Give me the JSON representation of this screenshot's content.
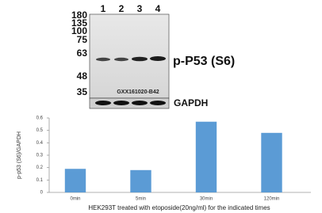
{
  "blot": {
    "lanes": [
      "1",
      "2",
      "3",
      "4"
    ],
    "markers": [
      "180",
      "135",
      "100",
      "75",
      "63",
      "48",
      "35"
    ],
    "target_label": "p-P53 (S6)",
    "loading_label": "GAPDH",
    "watermark": "GXX161020-B42"
  },
  "chart_data": {
    "type": "bar",
    "y_label": "p-p53 (S6)/GAPDH",
    "x_label": "HEK293T treated with etoposide(20ng/ml) for the indicated times",
    "categories": [
      "0min",
      "5min",
      "30min",
      "120min"
    ],
    "values": [
      0.19,
      0.18,
      0.57,
      0.48
    ],
    "color": "#5b9bd5",
    "ylim": [
      0,
      0.6
    ],
    "yticks": [
      0,
      0.1,
      0.2,
      0.3,
      0.4,
      0.5,
      0.6
    ],
    "grid": false
  }
}
